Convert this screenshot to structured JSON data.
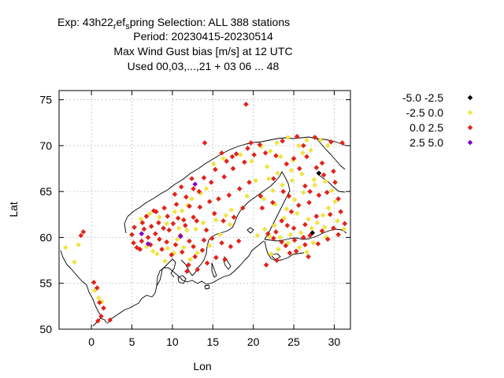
{
  "chart_data": {
    "type": "scatter",
    "title_lines": [
      "Exp: 43h22",
      "r",
      "ef",
      "s",
      "pring   Selection: ALL    388 stations",
      "Period: 20230415-20230514",
      "Max Wind Gust bias [m/s] at  12 UTC",
      "Used  00,03,...,21  + 03 06 ... 48"
    ],
    "xlabel": "Lon",
    "ylabel": "Lat",
    "xlim": [
      -4,
      32
    ],
    "ylim": [
      50,
      76
    ],
    "xticks": [
      "0",
      "5",
      "10",
      "15",
      "20",
      "25",
      "30"
    ],
    "xtick_values": [
      0,
      5,
      10,
      15,
      20,
      25,
      30
    ],
    "yticks": [
      "50",
      "55",
      "60",
      "65",
      "70",
      "75"
    ],
    "ytick_values": [
      50,
      55,
      60,
      65,
      70,
      75
    ],
    "grid": true,
    "legend_position": "top-right",
    "series": [
      {
        "name": "-5.0 -2.5",
        "color": "#000000",
        "points": [
          [
            28.1,
            67.0
          ],
          [
            27.3,
            60.5
          ]
        ]
      },
      {
        "name": "-2.5 0.0",
        "color": "#f0e442",
        "points": [
          [
            -3.2,
            58.9
          ],
          [
            -2.1,
            57.3
          ],
          [
            -1.6,
            59.2
          ],
          [
            0.4,
            54.2
          ],
          [
            0.9,
            53.4
          ],
          [
            1.3,
            53.0
          ],
          [
            6.1,
            62.0
          ],
          [
            7.2,
            62.6
          ],
          [
            8.4,
            62.2
          ],
          [
            9.3,
            61.5
          ],
          [
            10.3,
            62.8
          ],
          [
            10.8,
            61.0
          ],
          [
            11.2,
            62.9
          ],
          [
            11.9,
            63.5
          ],
          [
            12.4,
            64.2
          ],
          [
            13.5,
            64.8
          ],
          [
            14.2,
            65.3
          ],
          [
            11.8,
            60.8
          ],
          [
            10.6,
            59.8
          ],
          [
            9.4,
            58.8
          ],
          [
            8.1,
            58.2
          ],
          [
            7.6,
            58.5
          ],
          [
            6.8,
            59.0
          ],
          [
            12.9,
            60.9
          ],
          [
            13.8,
            61.6
          ],
          [
            15.4,
            61.9
          ],
          [
            16.6,
            62.4
          ],
          [
            17.3,
            63.0
          ],
          [
            19.2,
            64.5
          ],
          [
            20.3,
            66.2
          ],
          [
            21.7,
            67.7
          ],
          [
            23.4,
            68.8
          ],
          [
            24.9,
            68.4
          ],
          [
            22.1,
            69.4
          ],
          [
            25.6,
            70.0
          ],
          [
            27.1,
            69.5
          ],
          [
            28.3,
            70.6
          ],
          [
            26.0,
            66.9
          ],
          [
            24.8,
            66.2
          ],
          [
            23.6,
            65.7
          ],
          [
            22.4,
            65.1
          ],
          [
            21.3,
            64.2
          ],
          [
            22.7,
            63.6
          ],
          [
            24.1,
            63.1
          ],
          [
            25.4,
            62.6
          ],
          [
            26.8,
            62.0
          ],
          [
            27.9,
            61.6
          ],
          [
            28.6,
            62.4
          ],
          [
            29.3,
            63.2
          ],
          [
            30.1,
            63.9
          ],
          [
            29.7,
            65.1
          ],
          [
            28.9,
            66.1
          ],
          [
            27.6,
            65.7
          ],
          [
            26.2,
            64.9
          ],
          [
            25.1,
            64.1
          ],
          [
            23.8,
            62.1
          ],
          [
            22.6,
            61.3
          ],
          [
            21.4,
            60.9
          ],
          [
            20.5,
            60.2
          ],
          [
            22.0,
            60.1
          ],
          [
            23.3,
            60.0
          ],
          [
            24.6,
            60.3
          ],
          [
            25.9,
            60.5
          ],
          [
            27.2,
            61.0
          ],
          [
            28.8,
            61.1
          ],
          [
            30.4,
            61.8
          ],
          [
            31.2,
            60.9
          ],
          [
            24.3,
            59.4
          ],
          [
            25.7,
            58.9
          ],
          [
            26.6,
            58.4
          ],
          [
            23.1,
            58.7
          ],
          [
            22.2,
            58.2
          ],
          [
            27.4,
            59.4
          ],
          [
            29.0,
            60.0
          ],
          [
            18.4,
            69.0
          ],
          [
            16.3,
            68.6
          ],
          [
            15.1,
            68.0
          ],
          [
            19.8,
            68.3
          ],
          [
            21.0,
            69.9
          ],
          [
            22.9,
            70.3
          ],
          [
            24.3,
            70.9
          ],
          [
            26.6,
            70.6
          ],
          [
            29.2,
            70.0
          ],
          [
            26.1,
            69.2
          ],
          [
            24.7,
            67.3
          ],
          [
            23.0,
            67.0
          ],
          [
            21.9,
            66.4
          ],
          [
            27.5,
            66.3
          ],
          [
            12.2,
            57.6
          ],
          [
            13.1,
            58.3
          ],
          [
            14.6,
            59.1
          ],
          [
            15.9,
            60.3
          ],
          [
            17.1,
            61.4
          ],
          [
            9.1,
            57.4
          ],
          [
            10.2,
            58.3
          ],
          [
            11.4,
            58.9
          ]
        ]
      },
      {
        "name": "0.0 2.5",
        "color": "#e0231a",
        "points": [
          [
            19.1,
            74.5
          ],
          [
            -1.3,
            60.2
          ],
          [
            -1.0,
            60.6
          ],
          [
            0.3,
            55.1
          ],
          [
            0.7,
            54.5
          ],
          [
            1.0,
            52.9
          ],
          [
            1.5,
            52.3
          ],
          [
            1.2,
            51.4
          ],
          [
            0.8,
            50.9
          ],
          [
            2.3,
            51.0
          ],
          [
            5.0,
            60.3
          ],
          [
            5.3,
            61.1
          ],
          [
            5.2,
            59.4
          ],
          [
            5.6,
            58.9
          ],
          [
            6.0,
            58.7
          ],
          [
            6.3,
            61.6
          ],
          [
            6.8,
            62.3
          ],
          [
            7.4,
            61.2
          ],
          [
            7.9,
            60.4
          ],
          [
            8.4,
            59.8
          ],
          [
            8.9,
            61.0
          ],
          [
            9.6,
            60.8
          ],
          [
            10.1,
            61.5
          ],
          [
            10.7,
            62.1
          ],
          [
            11.4,
            61.9
          ],
          [
            9.3,
            59.5
          ],
          [
            10.4,
            59.2
          ],
          [
            11.0,
            60.2
          ],
          [
            12.1,
            59.6
          ],
          [
            13.0,
            61.8
          ],
          [
            7.0,
            60.0
          ],
          [
            6.5,
            60.9
          ],
          [
            8.0,
            62.8
          ],
          [
            9.0,
            63.2
          ],
          [
            10.5,
            63.6
          ],
          [
            11.7,
            64.4
          ],
          [
            12.6,
            65.3
          ],
          [
            13.9,
            66.5
          ],
          [
            15.3,
            67.4
          ],
          [
            16.7,
            68.3
          ],
          [
            17.9,
            69.1
          ],
          [
            19.3,
            69.7
          ],
          [
            20.8,
            70.1
          ],
          [
            23.6,
            70.5
          ],
          [
            25.4,
            71.0
          ],
          [
            27.6,
            70.9
          ],
          [
            29.6,
            70.4
          ],
          [
            31.0,
            70.3
          ],
          [
            26.6,
            68.8
          ],
          [
            25.0,
            68.6
          ],
          [
            27.8,
            67.6
          ],
          [
            28.5,
            68.1
          ],
          [
            29.9,
            67.2
          ],
          [
            27.0,
            65.0
          ],
          [
            26.4,
            65.6
          ],
          [
            25.6,
            63.5
          ],
          [
            24.7,
            62.8
          ],
          [
            23.5,
            61.8
          ],
          [
            22.8,
            60.6
          ],
          [
            24.2,
            61.3
          ],
          [
            25.0,
            61.0
          ],
          [
            26.4,
            61.4
          ],
          [
            27.8,
            62.3
          ],
          [
            29.5,
            62.5
          ],
          [
            30.8,
            62.8
          ],
          [
            31.3,
            61.5
          ],
          [
            29.9,
            61.0
          ],
          [
            28.5,
            60.7
          ],
          [
            27.0,
            60.2
          ],
          [
            26.2,
            60.0
          ],
          [
            25.1,
            59.7
          ],
          [
            24.0,
            59.1
          ],
          [
            23.5,
            59.5
          ],
          [
            22.5,
            59.9
          ],
          [
            21.8,
            60.4
          ],
          [
            26.4,
            59.2
          ],
          [
            25.3,
            58.5
          ],
          [
            24.5,
            58.3
          ],
          [
            28.0,
            59.3
          ],
          [
            29.2,
            59.8
          ],
          [
            30.5,
            60.3
          ],
          [
            26.8,
            57.9
          ],
          [
            22.9,
            57.5
          ],
          [
            21.6,
            57.0
          ],
          [
            22.4,
            63.8
          ],
          [
            21.1,
            63.2
          ],
          [
            20.9,
            64.5
          ],
          [
            22.5,
            66.4
          ],
          [
            23.7,
            65.0
          ],
          [
            24.4,
            64.5
          ],
          [
            26.9,
            63.8
          ],
          [
            28.1,
            64.6
          ],
          [
            29.1,
            64.9
          ],
          [
            30.5,
            64.2
          ],
          [
            28.7,
            66.8
          ],
          [
            30.1,
            66.0
          ],
          [
            25.7,
            67.5
          ],
          [
            24.1,
            68.0
          ],
          [
            22.8,
            68.9
          ],
          [
            21.5,
            69.2
          ],
          [
            20.1,
            69.0
          ],
          [
            18.9,
            68.2
          ],
          [
            17.5,
            67.5
          ],
          [
            16.4,
            66.6
          ],
          [
            14.8,
            66.0
          ],
          [
            13.3,
            65.0
          ],
          [
            12.1,
            63.4
          ],
          [
            13.4,
            63.3
          ],
          [
            14.6,
            63.9
          ],
          [
            15.7,
            64.2
          ],
          [
            17.0,
            64.6
          ],
          [
            18.3,
            65.3
          ],
          [
            19.5,
            66.0
          ],
          [
            15.2,
            62.6
          ],
          [
            16.3,
            61.8
          ],
          [
            17.6,
            62.2
          ],
          [
            18.7,
            63.2
          ],
          [
            14.2,
            60.8
          ],
          [
            14.9,
            59.9
          ],
          [
            16.1,
            59.4
          ],
          [
            17.2,
            59.0
          ],
          [
            18.2,
            59.6
          ],
          [
            13.7,
            58.6
          ],
          [
            12.8,
            57.9
          ],
          [
            12.0,
            57.0
          ],
          [
            11.8,
            56.3
          ],
          [
            13.1,
            56.5
          ],
          [
            14.3,
            57.2
          ],
          [
            15.4,
            57.8
          ],
          [
            16.5,
            57.6
          ],
          [
            6.2,
            59.6
          ],
          [
            7.3,
            59.2
          ],
          [
            8.7,
            58.7
          ],
          [
            9.9,
            58.1
          ],
          [
            11.2,
            58.4
          ],
          [
            12.6,
            59.0
          ],
          [
            13.9,
            59.7
          ],
          [
            11.6,
            61.3
          ],
          [
            12.6,
            62.2
          ],
          [
            7.7,
            62.9
          ],
          [
            9.4,
            62.3
          ],
          [
            8.3,
            61.6
          ],
          [
            14.0,
            70.3
          ],
          [
            19.7,
            70.3
          ],
          [
            16.1,
            69.2
          ],
          [
            17.4,
            68.8
          ],
          [
            12.4,
            66.4
          ],
          [
            11.1,
            65.5
          ],
          [
            10.3,
            64.7
          ],
          [
            26.2,
            70.0
          ]
        ]
      },
      {
        "name": "2.5 5.0",
        "color": "#8000c8",
        "points": [
          [
            6.2,
            60.4
          ],
          [
            7.0,
            59.3
          ],
          [
            11.0,
            60.1
          ],
          [
            12.8,
            65.8
          ]
        ]
      }
    ]
  }
}
